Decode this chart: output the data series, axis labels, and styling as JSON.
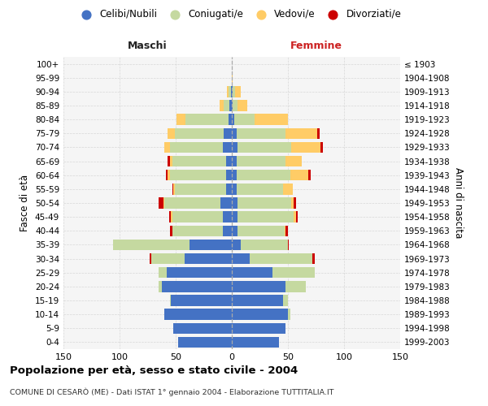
{
  "age_groups": [
    "0-4",
    "5-9",
    "10-14",
    "15-19",
    "20-24",
    "25-29",
    "30-34",
    "35-39",
    "40-44",
    "45-49",
    "50-54",
    "55-59",
    "60-64",
    "65-69",
    "70-74",
    "75-79",
    "80-84",
    "85-89",
    "90-94",
    "95-99",
    "100+"
  ],
  "birth_years": [
    "1999-2003",
    "1994-1998",
    "1989-1993",
    "1984-1988",
    "1979-1983",
    "1974-1978",
    "1969-1973",
    "1964-1968",
    "1959-1963",
    "1954-1958",
    "1949-1953",
    "1944-1948",
    "1939-1943",
    "1934-1938",
    "1929-1933",
    "1924-1928",
    "1919-1923",
    "1914-1918",
    "1909-1913",
    "1904-1908",
    "≤ 1903"
  ],
  "males": {
    "celibi": [
      48,
      52,
      60,
      54,
      62,
      58,
      42,
      38,
      8,
      8,
      10,
      5,
      5,
      5,
      8,
      7,
      3,
      2,
      1,
      0,
      0
    ],
    "coniugati": [
      0,
      0,
      0,
      1,
      3,
      7,
      30,
      68,
      45,
      45,
      50,
      46,
      50,
      48,
      47,
      44,
      38,
      5,
      2,
      0,
      0
    ],
    "vedovi": [
      0,
      0,
      0,
      0,
      0,
      0,
      0,
      0,
      0,
      1,
      1,
      1,
      2,
      2,
      5,
      6,
      8,
      4,
      1,
      0,
      0
    ],
    "divorziati": [
      0,
      0,
      0,
      0,
      0,
      0,
      1,
      0,
      2,
      2,
      4,
      1,
      2,
      2,
      0,
      0,
      0,
      0,
      0,
      0,
      0
    ]
  },
  "females": {
    "nubili": [
      42,
      48,
      50,
      46,
      48,
      36,
      16,
      8,
      5,
      5,
      5,
      4,
      4,
      4,
      5,
      4,
      2,
      1,
      1,
      0,
      0
    ],
    "coniugate": [
      0,
      0,
      2,
      4,
      18,
      38,
      56,
      42,
      42,
      50,
      48,
      42,
      48,
      44,
      48,
      44,
      18,
      4,
      2,
      0,
      0
    ],
    "vedove": [
      0,
      0,
      0,
      0,
      0,
      0,
      0,
      0,
      1,
      2,
      2,
      8,
      16,
      14,
      26,
      28,
      30,
      9,
      5,
      1,
      0
    ],
    "divorziate": [
      0,
      0,
      0,
      0,
      0,
      0,
      2,
      1,
      2,
      2,
      2,
      0,
      2,
      0,
      2,
      2,
      0,
      0,
      0,
      0,
      0
    ]
  },
  "colors": {
    "celibi": "#4472C4",
    "coniugati": "#C5D9A0",
    "vedovi": "#FFCC66",
    "divorziati": "#CC0000"
  },
  "xlim": 150,
  "title": "Popolazione per età, sesso e stato civile - 2004",
  "subtitle": "COMUNE DI CESARÒ (ME) - Dati ISTAT 1° gennaio 2004 - Elaborazione TUTTITALIA.IT",
  "ylabel_left": "Fasce di età",
  "ylabel_right": "Anni di nascita",
  "xlabel_left": "Maschi",
  "xlabel_right": "Femmine",
  "bg_color": "#f5f5f5",
  "grid_color": "#cccccc"
}
